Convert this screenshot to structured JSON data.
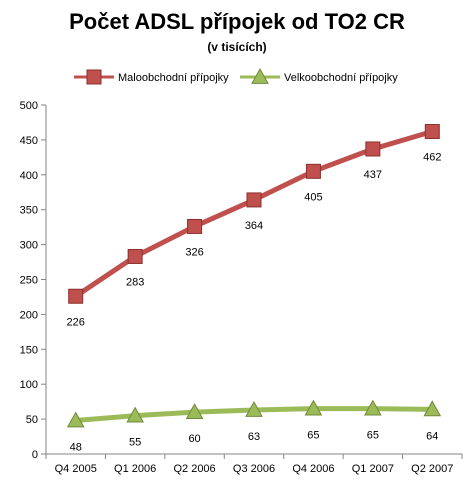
{
  "chart_data": {
    "type": "line",
    "title": "Počet ADSL přípojek od TO2 CR",
    "subtitle": "(v tisících)",
    "categories": [
      "Q4 2005",
      "Q1 2006",
      "Q2 2006",
      "Q3 2006",
      "Q4 2006",
      "Q1 2007",
      "Q2 2007"
    ],
    "ylim": [
      0,
      500
    ],
    "yticks": [
      0,
      50,
      100,
      150,
      200,
      250,
      300,
      350,
      400,
      450,
      500
    ],
    "grid": false,
    "legend_position": "top",
    "series": [
      {
        "name": "Maloobchodní přípojky",
        "values": [
          226,
          283,
          326,
          364,
          405,
          437,
          462
        ],
        "color": "#c0504d",
        "marker": "square"
      },
      {
        "name": "Velkoobchodní přípojky",
        "values": [
          48,
          55,
          60,
          63,
          65,
          65,
          64
        ],
        "color": "#9bbb59",
        "marker": "triangle"
      }
    ]
  }
}
